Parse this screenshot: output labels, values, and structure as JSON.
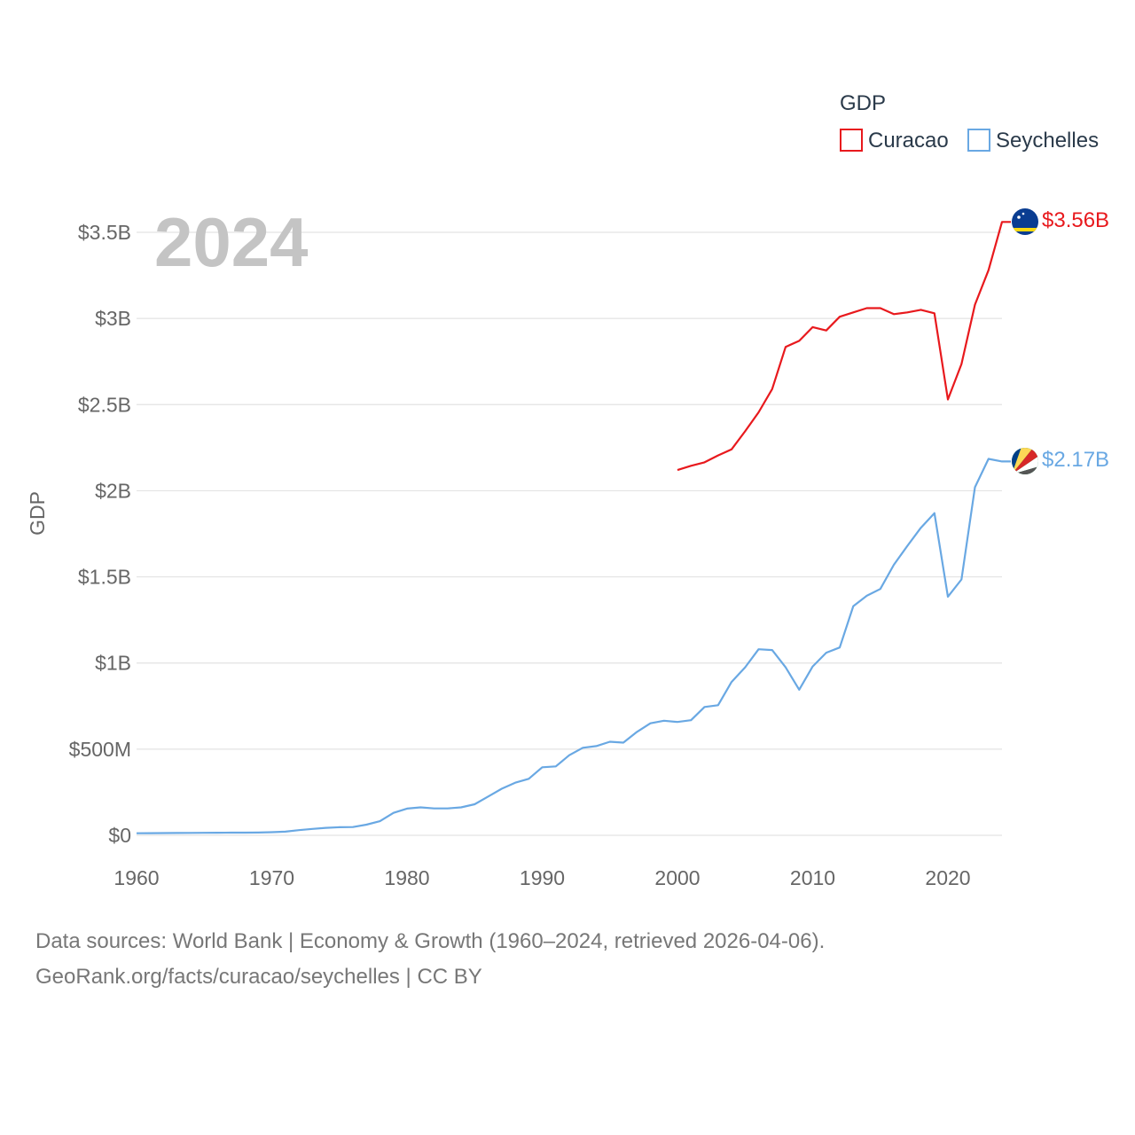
{
  "chart_data": {
    "type": "line",
    "title": "2024",
    "xlabel": "",
    "ylabel": "GDP",
    "xlim": [
      1960,
      2024
    ],
    "ylim": [
      0,
      3500000000
    ],
    "x_ticks": [
      1960,
      1970,
      1980,
      1990,
      2000,
      2010,
      2020
    ],
    "x_tick_labels": [
      "1960",
      "1970",
      "1980",
      "1990",
      "2000",
      "2010",
      "2020"
    ],
    "y_ticks": [
      0,
      500000000,
      1000000000,
      1500000000,
      2000000000,
      2500000000,
      3000000000,
      3500000000
    ],
    "y_tick_labels": [
      "$0",
      "$500M",
      "$1B",
      "$1.5B",
      "$2B",
      "$2.5B",
      "$3B",
      "$3.5B"
    ],
    "grid": true,
    "legend": {
      "title": "GDP",
      "position": "top-right"
    },
    "series": [
      {
        "name": "Curacao",
        "color": "#e8191d",
        "end_label": "$3.56B",
        "x": [
          2000,
          2001,
          2002,
          2003,
          2004,
          2005,
          2006,
          2007,
          2008,
          2009,
          2010,
          2011,
          2012,
          2013,
          2014,
          2015,
          2016,
          2017,
          2018,
          2019,
          2020,
          2021,
          2022,
          2023,
          2024
        ],
        "values": [
          2120000000,
          2145000000,
          2165000000,
          2205000000,
          2240000000,
          2345000000,
          2455000000,
          2590000000,
          2835000000,
          2870000000,
          2950000000,
          2930000000,
          3010000000,
          3035000000,
          3060000000,
          3060000000,
          3025000000,
          3035000000,
          3050000000,
          3030000000,
          2530000000,
          2735000000,
          3080000000,
          3280000000,
          3560000000
        ]
      },
      {
        "name": "Seychelles",
        "color": "#69a8e3",
        "end_label": "$2.17B",
        "x": [
          1960,
          1961,
          1962,
          1963,
          1964,
          1965,
          1966,
          1967,
          1968,
          1969,
          1970,
          1971,
          1972,
          1973,
          1974,
          1975,
          1976,
          1977,
          1978,
          1979,
          1980,
          1981,
          1982,
          1983,
          1984,
          1985,
          1986,
          1987,
          1988,
          1989,
          1990,
          1991,
          1992,
          1993,
          1994,
          1995,
          1996,
          1997,
          1998,
          1999,
          2000,
          2001,
          2002,
          2003,
          2004,
          2005,
          2006,
          2007,
          2008,
          2009,
          2010,
          2011,
          2012,
          2013,
          2014,
          2015,
          2016,
          2017,
          2018,
          2019,
          2020,
          2021,
          2022,
          2023,
          2024
        ],
        "values": [
          12000000,
          12500000,
          13000000,
          13500000,
          14000000,
          14500000,
          15000000,
          15500000,
          15500000,
          16000000,
          18000000,
          21000000,
          30000000,
          37000000,
          43000000,
          47000000,
          48000000,
          62000000,
          82000000,
          130000000,
          155000000,
          162000000,
          156000000,
          156000000,
          162000000,
          180000000,
          225000000,
          270000000,
          305000000,
          328000000,
          395000000,
          400000000,
          465000000,
          508000000,
          518000000,
          543000000,
          538000000,
          600000000,
          650000000,
          665000000,
          658000000,
          668000000,
          745000000,
          755000000,
          890000000,
          975000000,
          1080000000,
          1075000000,
          975000000,
          845000000,
          980000000,
          1060000000,
          1090000000,
          1330000000,
          1390000000,
          1430000000,
          1570000000,
          1680000000,
          1785000000,
          1870000000,
          1385000000,
          1485000000,
          2020000000,
          2185000000,
          2170000000
        ]
      }
    ]
  },
  "footer": {
    "line1": "Data sources: World Bank | Economy & Growth (1960–2024, retrieved 2026-04-06).",
    "line2": "GeoRank.org/facts/curacao/seychelles | CC BY"
  }
}
